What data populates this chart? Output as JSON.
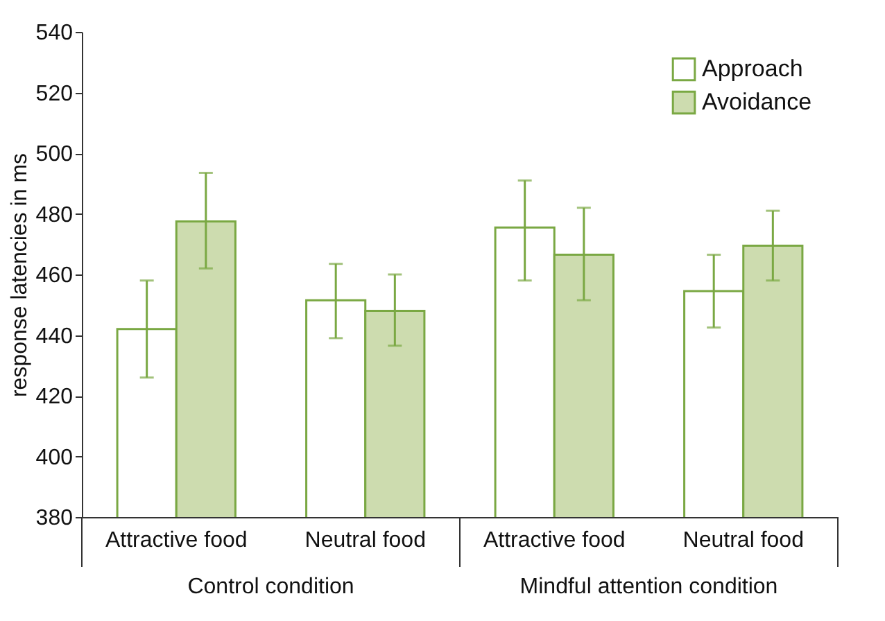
{
  "chart_data": {
    "type": "bar",
    "categories": [
      "Attractive food",
      "Neutral food",
      "Attractive food",
      "Neutral food"
    ],
    "annotations": [
      "Control condition",
      "Mindful attention condition"
    ],
    "ylabel": "response latencies in ms",
    "ylim": [
      380,
      540
    ],
    "yticks": [
      380,
      400,
      420,
      440,
      460,
      480,
      500,
      520,
      540
    ],
    "grid": false,
    "legend": "top right",
    "series": [
      {
        "name": "Approach",
        "color": "#ffffff",
        "values": [
          442,
          451.5,
          475.5,
          454.5
        ],
        "errors": [
          [
            426,
            458
          ],
          [
            439,
            463.5
          ],
          [
            458,
            491
          ],
          [
            442.5,
            466.5
          ]
        ]
      },
      {
        "name": "Avoidance",
        "color": "#cddcaf",
        "values": [
          477.5,
          448,
          466.5,
          469.5
        ],
        "errors": [
          [
            462,
            493.5
          ],
          [
            436.5,
            460
          ],
          [
            451.5,
            482
          ],
          [
            458,
            481
          ]
        ]
      }
    ]
  }
}
